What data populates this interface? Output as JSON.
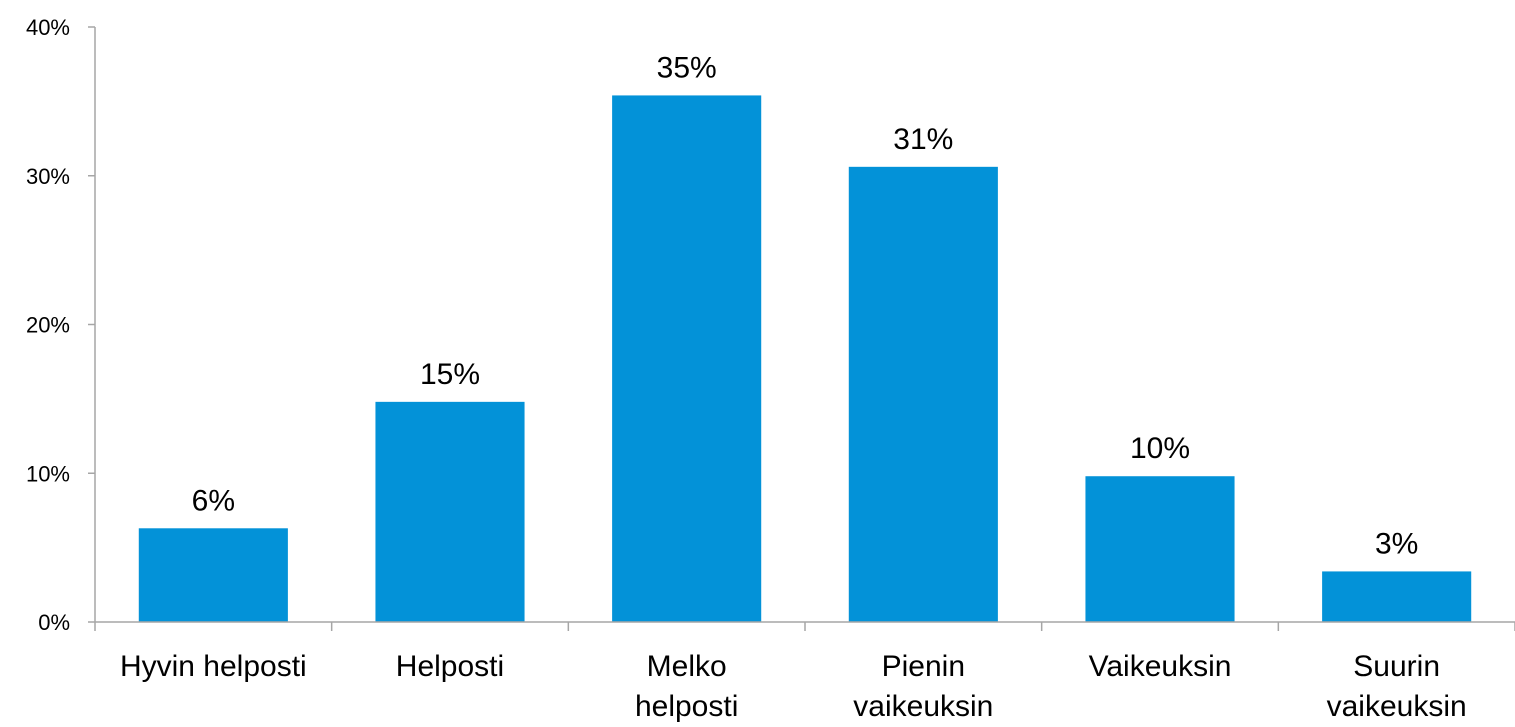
{
  "chart_data": {
    "type": "bar",
    "title": "",
    "xlabel": "",
    "ylabel": "",
    "categories": [
      [
        "Hyvin helposti"
      ],
      [
        "Helposti"
      ],
      [
        "Melko",
        "helposti"
      ],
      [
        "Pienin",
        "vaikeuksin"
      ],
      [
        "Vaikeuksin"
      ],
      [
        "Suurin",
        "vaikeuksin"
      ]
    ],
    "values": [
      6.3,
      14.8,
      35.4,
      30.6,
      9.8,
      3.4
    ],
    "data_labels": [
      "6%",
      "15%",
      "35%",
      "31%",
      "10%",
      "3%"
    ],
    "ylim": [
      0,
      40
    ],
    "yticks": [
      0,
      10,
      20,
      30,
      40
    ],
    "ytick_labels": [
      "0%",
      "10%",
      "20%",
      "30%",
      "40%"
    ],
    "grid": false,
    "legend": "none",
    "bar_color": "#0392D8",
    "axis_color": "#A6A6A6"
  }
}
